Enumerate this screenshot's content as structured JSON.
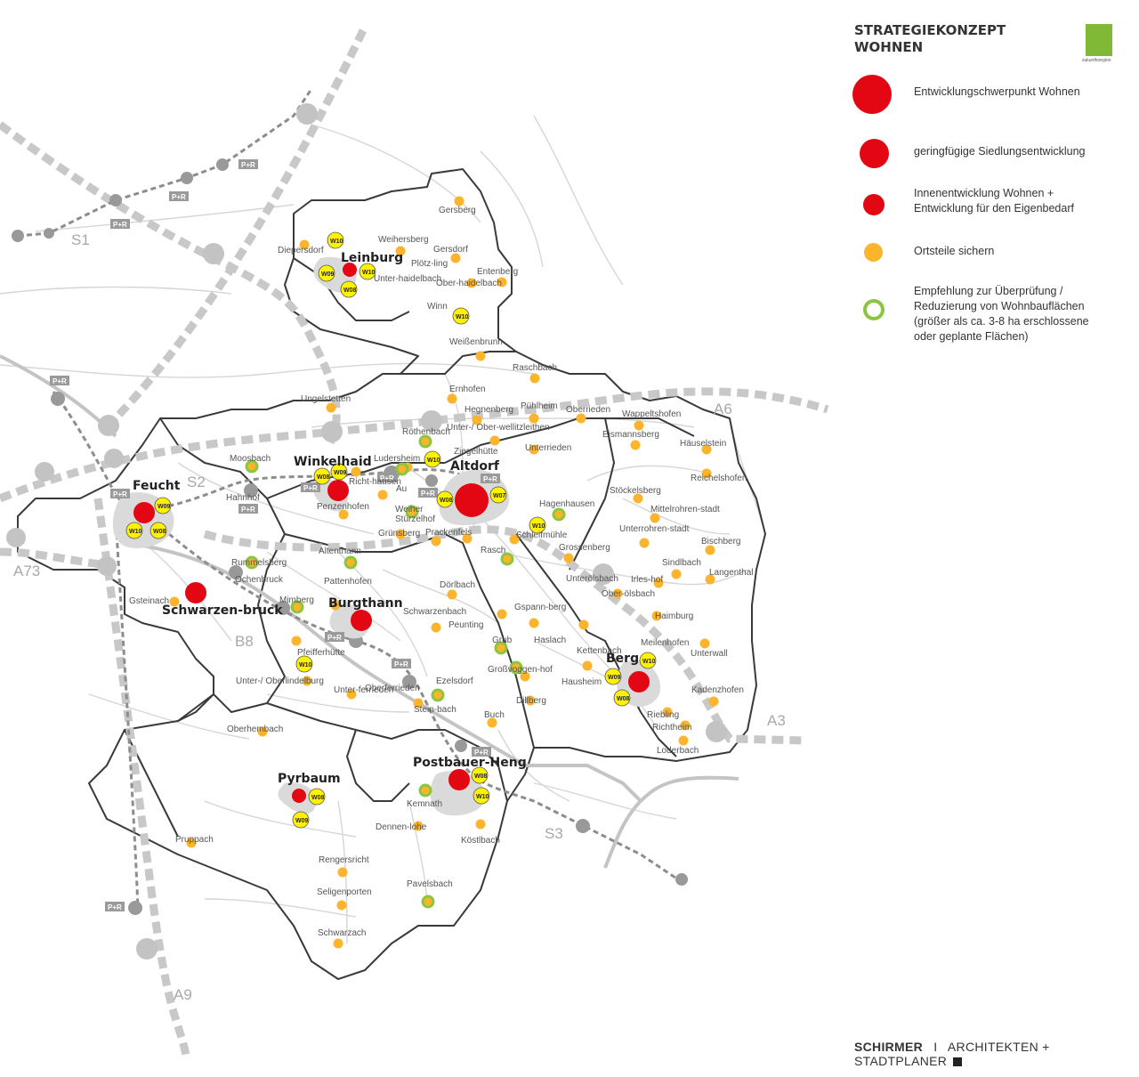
{
  "legend": {
    "title": "STRATEGIEKONZEPT WOHNEN",
    "title_line1": "STRATEGIEKONZEPT",
    "title_line2": "WOHNEN",
    "logo_text": "zukunftsregion",
    "items": [
      {
        "label": "Entwicklungschwerpunkt Wohnen",
        "color": "#e30613"
      },
      {
        "label": "geringfügige Siedlungsentwicklung",
        "color": "#e30613"
      },
      {
        "label": "Innenentwicklung Wohnen + Entwicklung für den Eigenbedarf",
        "color": "#e30613"
      },
      {
        "label": "Ortsteile sichern",
        "color": "#fbb42c"
      },
      {
        "label": "Empfehlung zur Überprüfung / Reduzierung von Wohnbauflächen (größer als ca. 3-8 ha erschlossene oder geplante Flächen)",
        "color": "#8cc63f"
      }
    ]
  },
  "routes": [
    "S1",
    "S2",
    "S3",
    "A6",
    "A3",
    "A73",
    "A9",
    "B8"
  ],
  "park_ride": "P+R",
  "major_towns": [
    {
      "name": "Leinburg",
      "level": "innen",
      "codes": [
        "W10",
        "W09",
        "W08",
        "W10"
      ]
    },
    {
      "name": "Winkelhaid",
      "level": "gering",
      "codes": [
        "W08",
        "W09"
      ]
    },
    {
      "name": "Altdorf",
      "level": "schwerpunkt",
      "codes": [
        "W07",
        "W08",
        "W10"
      ]
    },
    {
      "name": "Feucht",
      "level": "gering",
      "codes": [
        "W09",
        "W10",
        "W08"
      ]
    },
    {
      "name": "Schwarzen-bruck",
      "level": "gering",
      "codes": []
    },
    {
      "name": "Burgthann",
      "level": "gering",
      "codes": [
        "W10"
      ]
    },
    {
      "name": "Berg",
      "level": "gering",
      "codes": [
        "W10",
        "W09",
        "W08"
      ]
    },
    {
      "name": "Postbauer-Heng",
      "level": "gering",
      "codes": [
        "W08",
        "W10"
      ]
    },
    {
      "name": "Pyrbaum",
      "level": "innen",
      "codes": [
        "W08",
        "W09"
      ]
    }
  ],
  "places": [
    "Diepersdorf",
    "Weihersberg",
    "Gersberg",
    "Gersdorf",
    "Plötz-ling",
    "Unter-haidelbach",
    "Ober-haidelbach",
    "Entenberg",
    "Winn",
    "Weißenbrunn",
    "Raschbach",
    "Ungelstetten",
    "Ernhofen",
    "Hegnenberg",
    "Pühlheim",
    "Oberrieden",
    "Wappeltshofen",
    "Röthenbach",
    "Unter-/ Ober-wellitzleithen",
    "Ziegelhütte",
    "Eismannsberg",
    "Häuselstein",
    "Unterrieden",
    "Moosbach",
    "Ludersheim",
    "Reichelshofen",
    "Hagenhausen",
    "Stöckelsberg",
    "Mittelrohren-stadt",
    "Unterrohren-stadt",
    "Bischberg",
    "Weiher",
    "Stürzelhof",
    "Grünsberg",
    "Prackenfels",
    "Schleifmühle",
    "Grossenberg",
    "Rasch",
    "Sindlbach",
    "Langenthal",
    "Irles-hof",
    "Unterölsbach",
    "Ober-ölsbach",
    "Altenthann",
    "Rummelsberg",
    "Ochenbruck",
    "Pattenhofen",
    "Dörlbach",
    "Gspann-berg",
    "Haimburg",
    "Gsteinach",
    "Penzenhofen",
    "Richt-hausen",
    "Au",
    "Hahnhof",
    "Schwarzenbach",
    "Peunting",
    "Mimberg",
    "Grub",
    "Haslach",
    "Meilenhofen",
    "Unterwall",
    "Pfeifferhütte",
    "Kettenbach",
    "Großvoggen-hof",
    "Hausheim",
    "Kadenzhofen",
    "Unter-/ Oberlindelburg",
    "Unter-ferrieden",
    "Oberferrieden",
    "Ezelsdorf",
    "Stein-bach",
    "Dillberg",
    "Buch",
    "Riebling",
    "Richtheim",
    "Loderbach",
    "Oberhembach",
    "Kemnath",
    "Dennen-lohe",
    "Köstlbach",
    "Pruppach",
    "Rengersricht",
    "Seligenporten",
    "Pavelsbach",
    "Schwarzach"
  ],
  "footer": {
    "firm": "SCHIRMER",
    "separator": "I",
    "tagline": "ARCHITEKTEN + STADTPLANER"
  }
}
